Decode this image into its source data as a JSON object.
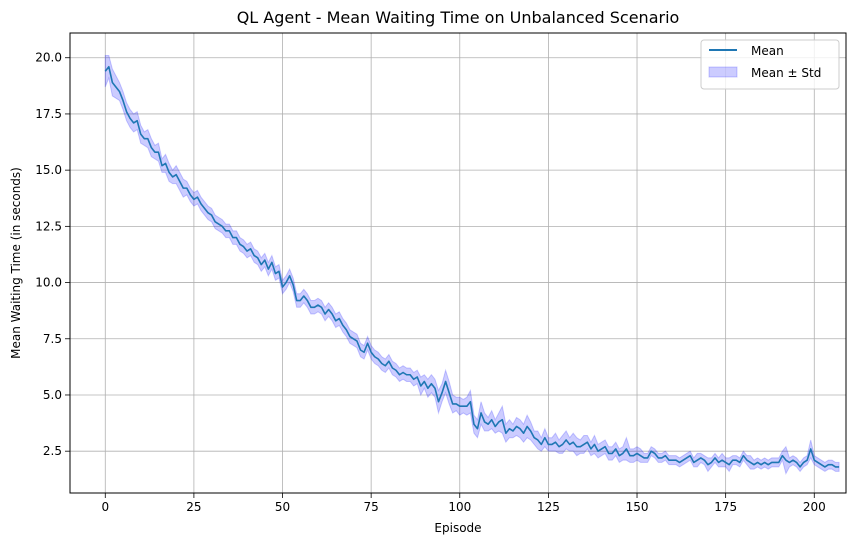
{
  "chart_data": {
    "type": "line",
    "title": "QL Agent - Mean Waiting Time on Unbalanced Scenario",
    "xlabel": "Episode",
    "ylabel": "Mean Waiting Time (in seconds)",
    "xlim": [
      -9.95,
      208.95
    ],
    "ylim": [
      0.64,
      21.1
    ],
    "xticks": [
      0,
      25,
      50,
      75,
      100,
      125,
      150,
      175,
      200
    ],
    "xtick_labels": [
      "0",
      "25",
      "50",
      "75",
      "100",
      "125",
      "150",
      "175",
      "200"
    ],
    "yticks": [
      2.5,
      5.0,
      7.5,
      10.0,
      12.5,
      15.0,
      17.5,
      20.0
    ],
    "ytick_labels": [
      "2.5",
      "5.0",
      "7.5",
      "10.0",
      "12.5",
      "15.0",
      "17.5",
      "20.0"
    ],
    "grid": true,
    "legend_position": "top-right",
    "legend": [
      {
        "label": "Mean",
        "kind": "line",
        "color": "#1f77b4"
      },
      {
        "label": "Mean ± Std",
        "kind": "band",
        "color": "#0000ff"
      }
    ],
    "colors": {
      "line": "#1f77b4",
      "band": "#0000ff",
      "band_edge": "#0000ff"
    },
    "x": {
      "start": 0,
      "end": 199,
      "step": 1
    },
    "mean": [
      19.4,
      19.6,
      18.9,
      18.7,
      18.5,
      18.1,
      17.6,
      17.3,
      17.1,
      17.2,
      16.6,
      16.4,
      16.4,
      16.0,
      15.8,
      15.8,
      15.2,
      15.3,
      14.9,
      14.7,
      14.8,
      14.5,
      14.2,
      14.2,
      13.9,
      13.7,
      13.8,
      13.5,
      13.3,
      13.1,
      13.0,
      12.7,
      12.6,
      12.5,
      12.3,
      12.3,
      12.0,
      12.0,
      11.7,
      11.6,
      11.4,
      11.5,
      11.2,
      11.1,
      10.8,
      11.0,
      10.6,
      10.9,
      10.4,
      10.5,
      9.8,
      10.0,
      10.3,
      9.9,
      9.2,
      9.2,
      9.4,
      9.2,
      8.9,
      8.9,
      9.0,
      8.9,
      8.6,
      8.8,
      8.6,
      8.3,
      8.4,
      8.1,
      7.9,
      7.6,
      7.5,
      7.4,
      7.0,
      6.9,
      7.3,
      6.9,
      6.7,
      6.6,
      6.4,
      6.3,
      6.5,
      6.2,
      6.1,
      5.9,
      6.0,
      5.9,
      5.9,
      5.7,
      5.8,
      5.4,
      5.6,
      5.3,
      5.5,
      5.3,
      4.7,
      5.1,
      5.6,
      5.1,
      4.6,
      4.6,
      4.5,
      4.5,
      4.5,
      4.7,
      3.7,
      3.5,
      4.2,
      3.8,
      3.7,
      3.9,
      3.6,
      3.8,
      3.9,
      3.3,
      3.5,
      3.4,
      3.6,
      3.5,
      3.3,
      3.6,
      3.4,
      3.1,
      3.0,
      2.8,
      3.1,
      2.8,
      2.8,
      2.9,
      2.7,
      2.8,
      3.0,
      2.8,
      2.9,
      2.7,
      2.7,
      2.8,
      2.9,
      2.6,
      2.8,
      2.5,
      2.6,
      2.7,
      2.4,
      2.4,
      2.6,
      2.3,
      2.4,
      2.6,
      2.3,
      2.3,
      2.4,
      2.3,
      2.2,
      2.2,
      2.5,
      2.4,
      2.2,
      2.2,
      2.3,
      2.1,
      2.1,
      2.1,
      2.0,
      2.1,
      2.2,
      2.3,
      2.0,
      2.1,
      2.2,
      2.1,
      1.9,
      2.0,
      2.2,
      2.0,
      2.1,
      2.0,
      1.9,
      2.1,
      2.1,
      2.0,
      2.3,
      2.1,
      2.0,
      1.9,
      2.0,
      1.9,
      2.0,
      1.9,
      2.0,
      2.0,
      2.0,
      2.3,
      2.1,
      2.0,
      2.1,
      2.0,
      1.8,
      2.0,
      2.1,
      2.6,
      2.1,
      2.0,
      1.9,
      1.8,
      1.9,
      1.9,
      1.8,
      1.8
    ],
    "std": [
      0.7,
      0.5,
      0.6,
      0.5,
      0.4,
      0.4,
      0.4,
      0.4,
      0.4,
      0.4,
      0.4,
      0.3,
      0.4,
      0.4,
      0.3,
      0.4,
      0.3,
      0.4,
      0.4,
      0.3,
      0.4,
      0.4,
      0.4,
      0.3,
      0.3,
      0.3,
      0.3,
      0.3,
      0.3,
      0.3,
      0.3,
      0.3,
      0.3,
      0.3,
      0.3,
      0.3,
      0.3,
      0.3,
      0.3,
      0.3,
      0.3,
      0.3,
      0.3,
      0.3,
      0.3,
      0.3,
      0.3,
      0.3,
      0.3,
      0.3,
      0.3,
      0.3,
      0.3,
      0.3,
      0.3,
      0.3,
      0.3,
      0.3,
      0.3,
      0.3,
      0.3,
      0.3,
      0.3,
      0.3,
      0.3,
      0.3,
      0.3,
      0.3,
      0.3,
      0.3,
      0.3,
      0.3,
      0.3,
      0.3,
      0.3,
      0.3,
      0.3,
      0.3,
      0.3,
      0.3,
      0.3,
      0.3,
      0.3,
      0.3,
      0.3,
      0.3,
      0.3,
      0.3,
      0.3,
      0.4,
      0.3,
      0.4,
      0.4,
      0.4,
      0.5,
      0.4,
      0.5,
      0.5,
      0.4,
      0.3,
      0.4,
      0.3,
      0.4,
      0.5,
      0.4,
      0.4,
      0.5,
      0.4,
      0.3,
      0.4,
      0.3,
      0.4,
      0.6,
      0.4,
      0.4,
      0.3,
      0.4,
      0.4,
      0.4,
      0.5,
      0.4,
      0.3,
      0.4,
      0.3,
      0.4,
      0.3,
      0.3,
      0.4,
      0.3,
      0.4,
      0.4,
      0.3,
      0.4,
      0.4,
      0.3,
      0.4,
      0.3,
      0.3,
      0.4,
      0.3,
      0.3,
      0.3,
      0.3,
      0.3,
      0.3,
      0.3,
      0.3,
      0.5,
      0.3,
      0.3,
      0.3,
      0.3,
      0.2,
      0.2,
      0.2,
      0.2,
      0.2,
      0.2,
      0.2,
      0.2,
      0.2,
      0.2,
      0.2,
      0.2,
      0.2,
      0.2,
      0.2,
      0.3,
      0.2,
      0.2,
      0.3,
      0.2,
      0.2,
      0.2,
      0.3,
      0.2,
      0.3,
      0.2,
      0.2,
      0.2,
      0.2,
      0.2,
      0.3,
      0.2,
      0.2,
      0.2,
      0.2,
      0.2,
      0.2,
      0.2,
      0.2,
      0.2,
      0.6,
      0.2,
      0.2,
      0.2,
      0.2,
      0.2,
      0.2,
      0.4,
      0.2,
      0.2,
      0.2,
      0.2,
      0.2,
      0.2,
      0.2,
      0.2
    ]
  }
}
